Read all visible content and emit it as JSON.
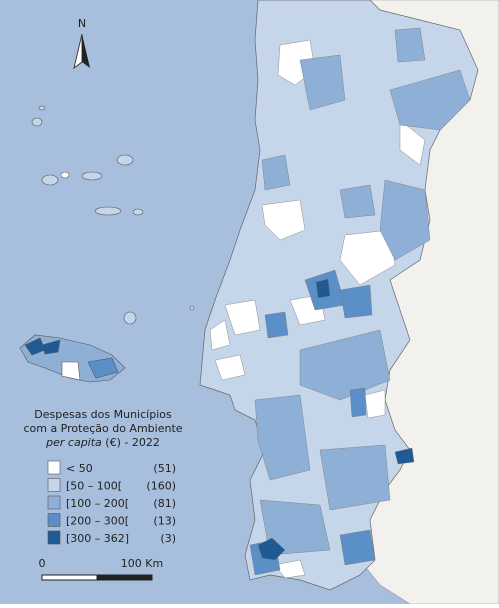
{
  "north_label": "N",
  "legend": {
    "title": [
      "Despesas dos Municípios",
      "com a Proteção do Ambiente"
    ],
    "subtitle_italic": "per capita",
    "subtitle_rest": "(€) - 2022",
    "items": [
      {
        "label": "< 50",
        "count": "(51)",
        "color": "#ffffff"
      },
      {
        "label": "[50 – 100[",
        "count": "(160)",
        "color": "#c6d6ea"
      },
      {
        "label": "[100 – 200[",
        "count": "(81)",
        "color": "#8fb0d6"
      },
      {
        "label": "[200 – 300[",
        "count": "(13)",
        "color": "#5b8fc7"
      },
      {
        "label": "[300 – 362]",
        "count": "(3)",
        "color": "#1f5a94"
      }
    ]
  },
  "scale_bar": {
    "start": "0",
    "end": "100 Km"
  }
}
